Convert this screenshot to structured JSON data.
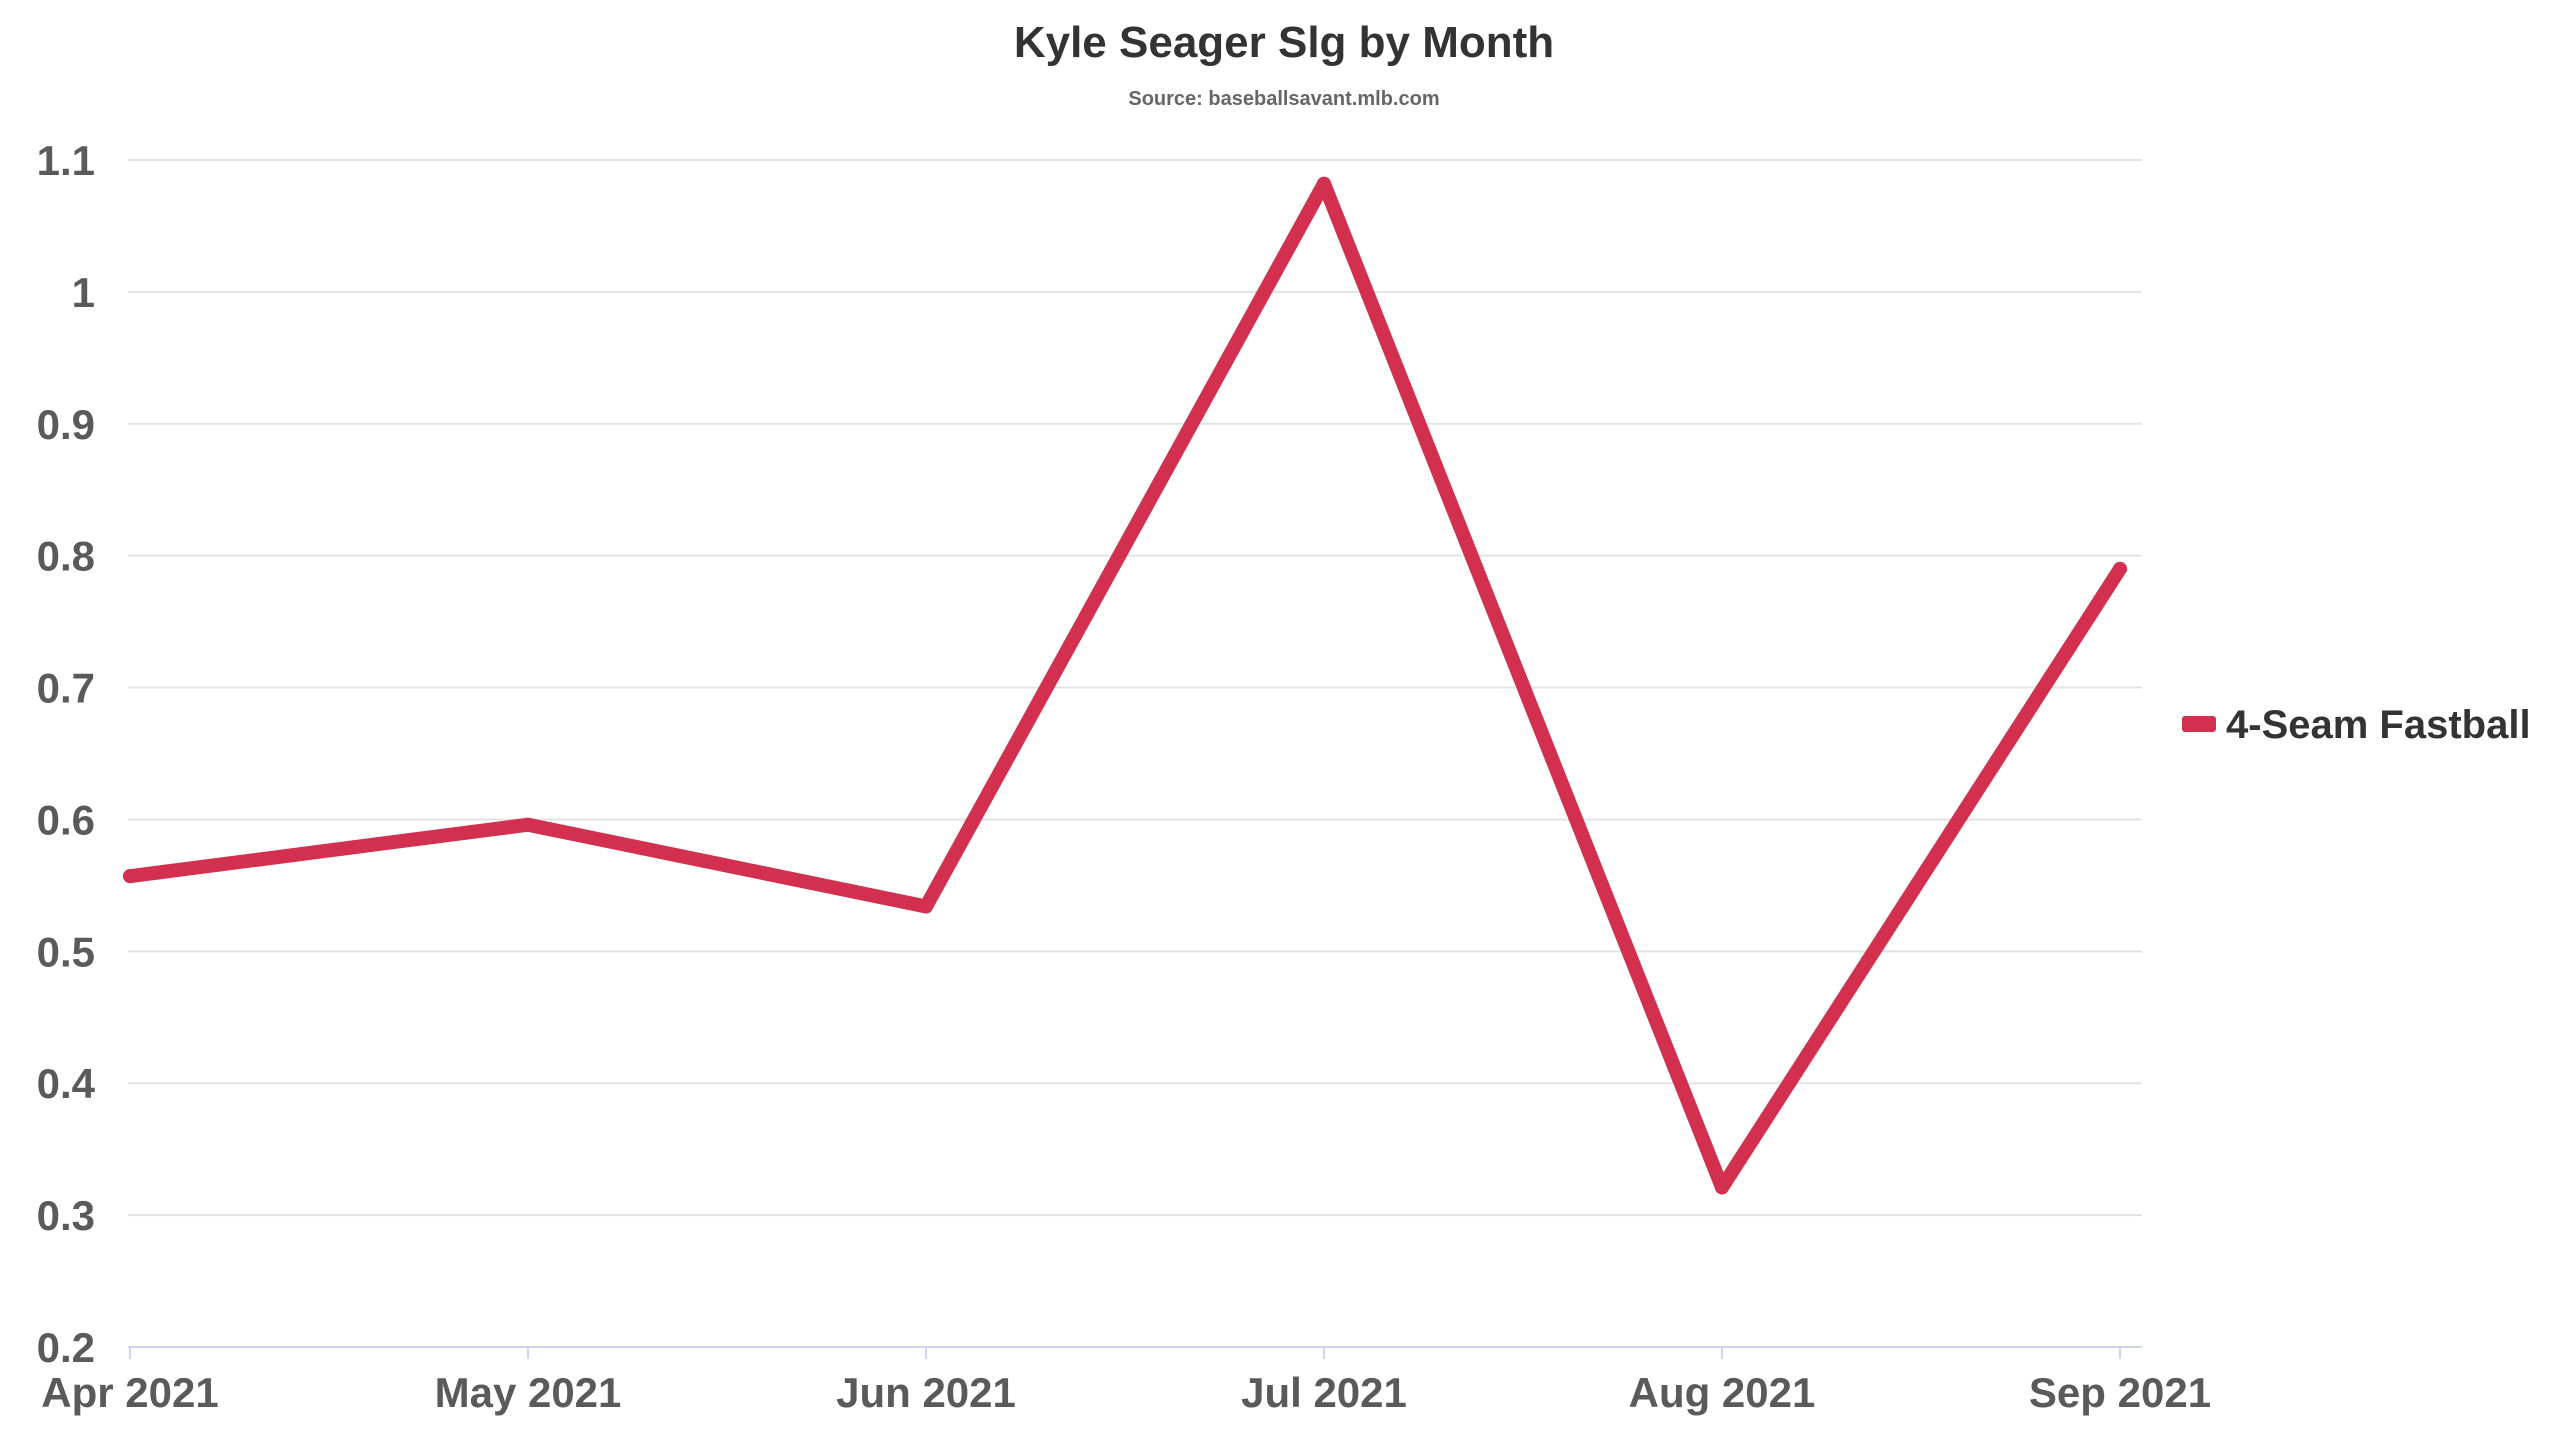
{
  "chart_data": {
    "type": "line",
    "title": "Kyle Seager Slg by Month",
    "subtitle": "Source: baseballsavant.mlb.com",
    "categories": [
      "Apr 2021",
      "May 2021",
      "Jun 2021",
      "Jul 2021",
      "Aug 2021",
      "Sep 2021"
    ],
    "series": [
      {
        "name": "4-Seam Fastball",
        "color": "#d2304e",
        "values": [
          0.557,
          0.596,
          0.534,
          1.082,
          0.321,
          0.79
        ]
      }
    ],
    "ylim": [
      0.2,
      1.1
    ],
    "yticks": [
      "0.2",
      "0.3",
      "0.4",
      "0.5",
      "0.6",
      "0.7",
      "0.8",
      "0.9",
      "1",
      "1.1"
    ],
    "xlabel": "",
    "ylabel": "",
    "grid": true,
    "legend_position": "right"
  }
}
